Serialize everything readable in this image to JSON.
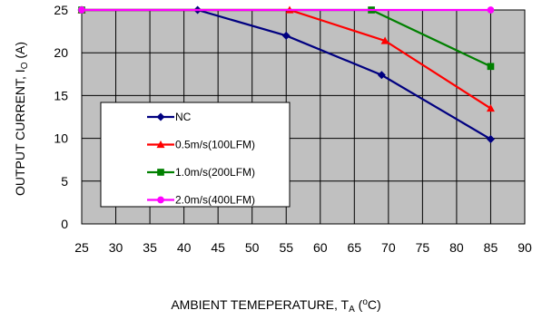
{
  "chart_data": {
    "type": "line",
    "xlabel": {
      "main": "AMBIENT TEMEPERATURE, T",
      "sub": "A",
      "open": " (",
      "sup": "o",
      "close": "C)"
    },
    "ylabel": {
      "main": "OUTPUT CURRENT, I",
      "sub": "O",
      "close": " (A)"
    },
    "xlim": [
      25,
      90
    ],
    "ylim": [
      0,
      25
    ],
    "xticks": [
      25,
      30,
      35,
      40,
      45,
      50,
      55,
      60,
      65,
      70,
      75,
      80,
      85,
      90
    ],
    "yticks": [
      0,
      5,
      10,
      15,
      20,
      25
    ],
    "grid": true,
    "plot_background": "#c0c0c0",
    "legend_position": "lower-left",
    "series": [
      {
        "name": "NC",
        "color": "#000080",
        "marker": "diamond",
        "x": [
          25,
          42,
          55,
          69,
          85
        ],
        "y": [
          25,
          25,
          22,
          17.4,
          9.9
        ]
      },
      {
        "name": "0.5m/s(100LFM)",
        "color": "#ff0000",
        "marker": "triangle",
        "x": [
          25,
          55.5,
          69.5,
          85
        ],
        "y": [
          25,
          25,
          21.4,
          13.5
        ]
      },
      {
        "name": "1.0m/s(200LFM)",
        "color": "#008000",
        "marker": "square",
        "x": [
          25,
          67.5,
          85
        ],
        "y": [
          25,
          25,
          18.4
        ]
      },
      {
        "name": "2.0m/s(400LFM)",
        "color": "#ff00ff",
        "marker": "circle",
        "x": [
          25,
          85
        ],
        "y": [
          25,
          25
        ]
      }
    ]
  }
}
